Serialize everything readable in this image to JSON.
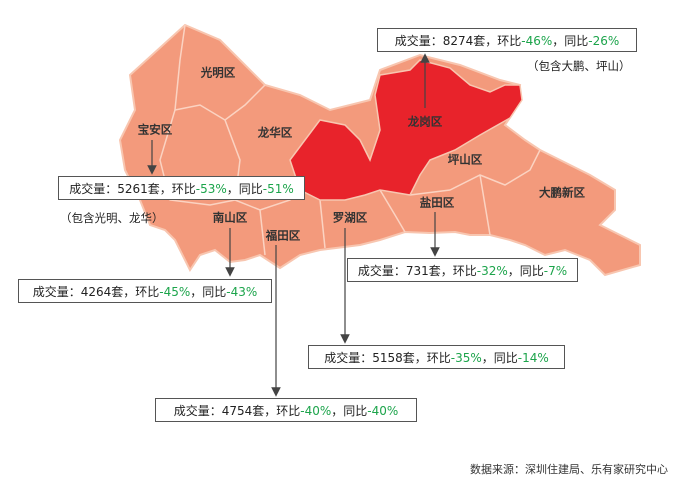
{
  "districts": [
    "光明区",
    "宝安区",
    "龙华区",
    "龙岗区",
    "坪山区",
    "大鹏新区",
    "盐田区",
    "罗湖区",
    "福田区",
    "南山区"
  ],
  "callouts": [
    {
      "volume": "成交量：8274套",
      "mom_label": "，环比",
      "mom": "-46%",
      "yoy_label": "，同比",
      "yoy": "-26%"
    },
    {
      "volume": "成交量：5261套",
      "mom_label": "，环比",
      "mom": "-53%",
      "yoy_label": "，同比",
      "yoy": "-51%"
    },
    {
      "volume": "成交量：4264套",
      "mom_label": "，环比",
      "mom": "-45%",
      "yoy_label": "，同比",
      "yoy": "-43%"
    },
    {
      "volume": "成交量：731套",
      "mom_label": "，环比",
      "mom": "-32%",
      "yoy_label": "，同比",
      "yoy": "-7%"
    },
    {
      "volume": "成交量：5158套",
      "mom_label": "，环比",
      "mom": "-35%",
      "yoy_label": "，同比",
      "yoy": "-14%"
    },
    {
      "volume": "成交量：4754套",
      "mom_label": "，环比",
      "mom": "-40%",
      "yoy_label": "，同比",
      "yoy": "-40%"
    }
  ],
  "notes": [
    "（包含大鹏、坪山）",
    "（包含光明、龙华）"
  ],
  "source": "数据来源：深圳住建局、乐有家研究中心"
}
